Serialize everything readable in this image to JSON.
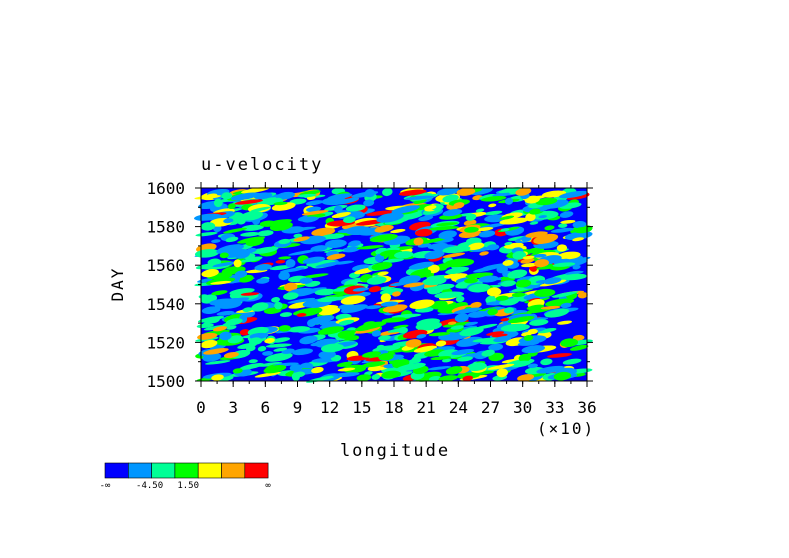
{
  "chart_data": {
    "type": "heatmap",
    "title": "u-velocity",
    "xlabel": "longitude",
    "ylabel": "DAY",
    "x_multiplier": "(×10)",
    "xlim": [
      0,
      36
    ],
    "ylim": [
      1500,
      1600
    ],
    "x_ticks": [
      "0",
      "3",
      "6",
      "9",
      "12",
      "15",
      "18",
      "21",
      "24",
      "27",
      "30",
      "33",
      "36"
    ],
    "y_ticks": [
      "1500",
      "1520",
      "1540",
      "1560",
      "1580",
      "1600"
    ],
    "grid": false,
    "colorbar": {
      "placement": "bottom-left",
      "colors": [
        "#0000ff",
        "#0096ff",
        "#00ff96",
        "#00ff00",
        "#ffff00",
        "#ffa500",
        "#ff0000"
      ],
      "labels": [
        "-∞",
        "-4.50",
        "1.50",
        "∞"
      ]
    }
  }
}
